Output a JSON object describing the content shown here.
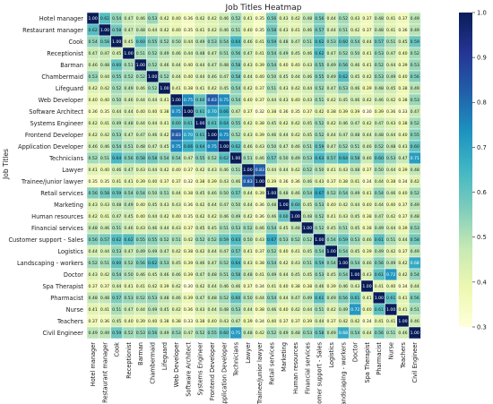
{
  "chart_data": {
    "type": "heatmap",
    "title": "Job Titles Heatmap",
    "ylabel": "Job Titles",
    "xlabel": "",
    "categories": [
      "Hotel manager",
      "Restaurant manager",
      "Cook",
      "Receptionist",
      "Barman",
      "Chambermaid",
      "Lifeguard",
      "Web Developer",
      "Software Architect",
      "Systems Engineer",
      "Frontend Developer",
      "Application Developer",
      "Technicians",
      "Lawyer",
      "Trainee/junior lawyer",
      "Retail services",
      "Marketing",
      "Human resources",
      "Financial services",
      "Customer support - Sales",
      "Logistics",
      "Landscaping - workers",
      "Doctor",
      "Spa Therapist",
      "Pharmacist",
      "Nurse",
      "Teachers",
      "Civil Engineer"
    ],
    "colormap": "YlGnBu",
    "value_format": "2 decimals",
    "colorbar": {
      "min": 0.3,
      "max": 1.0,
      "ticks": [
        0.3,
        0.4,
        0.5,
        0.6,
        0.7,
        0.8,
        0.9,
        1.0
      ],
      "tick_labels": [
        "0.3",
        "0.4",
        "0.5",
        "0.6",
        "0.7",
        "0.8",
        "0.9",
        "1.0"
      ],
      "placement": "right"
    },
    "values": [
      [
        1.0,
        0.62,
        0.54,
        0.47,
        0.46,
        0.53,
        0.42,
        0.4,
        0.36,
        0.42,
        0.42,
        0.46,
        0.52,
        0.41,
        0.35,
        0.56,
        0.43,
        0.42,
        0.48,
        0.56,
        0.44,
        0.52,
        0.43,
        0.37,
        0.48,
        0.41,
        0.37,
        0.49
      ],
      [
        0.62,
        1.0,
        0.58,
        0.47,
        0.48,
        0.44,
        0.42,
        0.4,
        0.35,
        0.41,
        0.42,
        0.46,
        0.51,
        0.4,
        0.35,
        0.58,
        0.43,
        0.41,
        0.46,
        0.57,
        0.44,
        0.51,
        0.42,
        0.37,
        0.48,
        0.41,
        0.36,
        0.49
      ],
      [
        0.54,
        0.58,
        1.0,
        0.45,
        0.6,
        0.55,
        0.52,
        0.5,
        0.44,
        0.49,
        0.53,
        0.54,
        0.64,
        0.46,
        0.41,
        0.59,
        0.48,
        0.47,
        0.51,
        0.62,
        0.53,
        0.6,
        0.54,
        0.44,
        0.57,
        0.51,
        0.45,
        0.59
      ],
      [
        0.47,
        0.47,
        0.45,
        1.0,
        0.51,
        0.52,
        0.49,
        0.46,
        0.44,
        0.48,
        0.47,
        0.51,
        0.56,
        0.47,
        0.41,
        0.54,
        0.49,
        0.45,
        0.46,
        0.62,
        0.47,
        0.52,
        0.5,
        0.41,
        0.53,
        0.47,
        0.4,
        0.52
      ],
      [
        0.46,
        0.48,
        0.6,
        0.51,
        1.0,
        0.52,
        0.46,
        0.44,
        0.4,
        0.44,
        0.47,
        0.48,
        0.58,
        0.43,
        0.39,
        0.54,
        0.4,
        0.4,
        0.43,
        0.55,
        0.49,
        0.56,
        0.46,
        0.41,
        0.52,
        0.44,
        0.39,
        0.53
      ],
      [
        0.53,
        0.44,
        0.55,
        0.52,
        0.52,
        1.0,
        0.52,
        0.44,
        0.4,
        0.44,
        0.46,
        0.47,
        0.58,
        0.44,
        0.4,
        0.5,
        0.45,
        0.44,
        0.46,
        0.55,
        0.49,
        0.62,
        0.45,
        0.42,
        0.53,
        0.49,
        0.4,
        0.56
      ],
      [
        0.42,
        0.42,
        0.52,
        0.49,
        0.46,
        0.52,
        1.0,
        0.41,
        0.38,
        0.41,
        0.42,
        0.45,
        0.54,
        0.42,
        0.37,
        0.51,
        0.43,
        0.42,
        0.44,
        0.52,
        0.47,
        0.53,
        0.46,
        0.39,
        0.48,
        0.45,
        0.38,
        0.49
      ],
      [
        0.4,
        0.4,
        0.5,
        0.46,
        0.44,
        0.44,
        0.41,
        1.0,
        0.75,
        0.6,
        0.83,
        0.75,
        0.54,
        0.4,
        0.37,
        0.44,
        0.43,
        0.4,
        0.43,
        0.51,
        0.42,
        0.45,
        0.46,
        0.42,
        0.46,
        0.42,
        0.38,
        0.53
      ],
      [
        0.36,
        0.35,
        0.44,
        0.44,
        0.4,
        0.4,
        0.38,
        0.75,
        1.0,
        0.61,
        0.7,
        0.66,
        0.47,
        0.37,
        0.32,
        0.38,
        0.36,
        0.35,
        0.37,
        0.42,
        0.38,
        0.39,
        0.39,
        0.3,
        0.39,
        0.36,
        0.33,
        0.47
      ],
      [
        0.42,
        0.41,
        0.49,
        0.48,
        0.44,
        0.44,
        0.41,
        0.6,
        0.61,
        1.0,
        0.61,
        0.64,
        0.55,
        0.42,
        0.38,
        0.45,
        0.42,
        0.42,
        0.45,
        0.52,
        0.42,
        0.46,
        0.47,
        0.42,
        0.47,
        0.43,
        0.38,
        0.52
      ],
      [
        0.42,
        0.42,
        0.53,
        0.47,
        0.47,
        0.46,
        0.42,
        0.83,
        0.7,
        0.61,
        1.0,
        0.75,
        0.52,
        0.43,
        0.39,
        0.46,
        0.44,
        0.42,
        0.45,
        0.52,
        0.44,
        0.47,
        0.48,
        0.44,
        0.48,
        0.44,
        0.4,
        0.55
      ],
      [
        0.46,
        0.46,
        0.54,
        0.51,
        0.48,
        0.47,
        0.45,
        0.75,
        0.66,
        0.64,
        0.75,
        1.0,
        0.62,
        0.46,
        0.43,
        0.5,
        0.47,
        0.46,
        0.51,
        0.59,
        0.47,
        0.52,
        0.51,
        0.46,
        0.52,
        0.48,
        0.43,
        0.6
      ],
      [
        0.52,
        0.51,
        0.64,
        0.56,
        0.58,
        0.58,
        0.54,
        0.54,
        0.47,
        0.55,
        0.52,
        0.62,
        1.0,
        0.51,
        0.46,
        0.57,
        0.5,
        0.49,
        0.53,
        0.63,
        0.57,
        0.64,
        0.58,
        0.46,
        0.6,
        0.53,
        0.47,
        0.71
      ],
      [
        0.41,
        0.4,
        0.46,
        0.47,
        0.43,
        0.44,
        0.42,
        0.4,
        0.37,
        0.42,
        0.43,
        0.46,
        0.51,
        1.0,
        0.83,
        0.44,
        0.44,
        0.42,
        0.52,
        0.5,
        0.41,
        0.43,
        0.48,
        0.37,
        0.5,
        0.44,
        0.39,
        0.48
      ],
      [
        0.35,
        0.35,
        0.41,
        0.41,
        0.39,
        0.4,
        0.37,
        0.37,
        0.32,
        0.38,
        0.39,
        0.43,
        0.46,
        0.83,
        1.0,
        0.39,
        0.36,
        0.36,
        0.46,
        0.43,
        0.37,
        0.38,
        0.41,
        0.34,
        0.44,
        0.38,
        0.34,
        0.42
      ],
      [
        0.56,
        0.58,
        0.59,
        0.54,
        0.54,
        0.5,
        0.51,
        0.44,
        0.38,
        0.45,
        0.46,
        0.5,
        0.57,
        0.44,
        0.39,
        1.0,
        0.48,
        0.46,
        0.54,
        0.67,
        0.52,
        0.54,
        0.49,
        0.41,
        0.54,
        0.46,
        0.4,
        0.52
      ],
      [
        0.43,
        0.43,
        0.48,
        0.49,
        0.4,
        0.45,
        0.43,
        0.43,
        0.36,
        0.42,
        0.44,
        0.47,
        0.5,
        0.44,
        0.36,
        0.48,
        1.0,
        0.6,
        0.45,
        0.53,
        0.4,
        0.42,
        0.44,
        0.4,
        0.44,
        0.4,
        0.37,
        0.49
      ],
      [
        0.42,
        0.41,
        0.47,
        0.45,
        0.4,
        0.44,
        0.42,
        0.4,
        0.35,
        0.42,
        0.42,
        0.46,
        0.49,
        0.42,
        0.36,
        0.46,
        0.6,
        1.0,
        0.48,
        0.52,
        0.41,
        0.43,
        0.45,
        0.38,
        0.47,
        0.42,
        0.37,
        0.48
      ],
      [
        0.48,
        0.46,
        0.51,
        0.46,
        0.43,
        0.46,
        0.44,
        0.43,
        0.37,
        0.45,
        0.45,
        0.51,
        0.53,
        0.52,
        0.46,
        0.54,
        0.45,
        0.48,
        1.0,
        0.52,
        0.45,
        0.51,
        0.45,
        0.38,
        0.49,
        0.44,
        0.39,
        0.53
      ],
      [
        0.56,
        0.57,
        0.62,
        0.62,
        0.55,
        0.55,
        0.52,
        0.51,
        0.42,
        0.52,
        0.52,
        0.59,
        0.63,
        0.5,
        0.43,
        0.67,
        0.53,
        0.52,
        0.52,
        1.0,
        0.54,
        0.59,
        0.53,
        0.46,
        0.61,
        0.51,
        0.44,
        0.58
      ],
      [
        0.44,
        0.44,
        0.53,
        0.47,
        0.49,
        0.49,
        0.47,
        0.42,
        0.38,
        0.42,
        0.44,
        0.47,
        0.57,
        0.41,
        0.37,
        0.52,
        0.4,
        0.41,
        0.45,
        0.54,
        1.0,
        0.54,
        0.45,
        0.39,
        0.49,
        0.42,
        0.37,
        0.49
      ],
      [
        0.52,
        0.51,
        0.6,
        0.52,
        0.56,
        0.62,
        0.53,
        0.45,
        0.39,
        0.46,
        0.47,
        0.52,
        0.64,
        0.43,
        0.38,
        0.54,
        0.42,
        0.43,
        0.51,
        0.59,
        0.54,
        1.0,
        0.54,
        0.46,
        0.56,
        0.49,
        0.42,
        0.68
      ],
      [
        0.43,
        0.42,
        0.54,
        0.5,
        0.46,
        0.45,
        0.46,
        0.46,
        0.39,
        0.47,
        0.48,
        0.51,
        0.58,
        0.48,
        0.41,
        0.49,
        0.44,
        0.45,
        0.45,
        0.53,
        0.45,
        0.54,
        1.0,
        0.43,
        0.61,
        0.72,
        0.42,
        0.54
      ],
      [
        0.37,
        0.37,
        0.44,
        0.41,
        0.41,
        0.42,
        0.39,
        0.42,
        0.3,
        0.42,
        0.44,
        0.46,
        0.46,
        0.37,
        0.34,
        0.41,
        0.4,
        0.38,
        0.38,
        0.46,
        0.39,
        0.46,
        0.43,
        1.0,
        0.41,
        0.4,
        0.34,
        0.44
      ],
      [
        0.48,
        0.48,
        0.57,
        0.53,
        0.52,
        0.53,
        0.48,
        0.46,
        0.39,
        0.47,
        0.48,
        0.52,
        0.6,
        0.5,
        0.44,
        0.54,
        0.44,
        0.47,
        0.49,
        0.61,
        0.49,
        0.56,
        0.61,
        0.41,
        1.0,
        0.61,
        0.41,
        0.56
      ],
      [
        0.41,
        0.41,
        0.51,
        0.47,
        0.44,
        0.49,
        0.45,
        0.42,
        0.36,
        0.43,
        0.44,
        0.48,
        0.53,
        0.44,
        0.38,
        0.46,
        0.4,
        0.42,
        0.44,
        0.51,
        0.42,
        0.49,
        0.72,
        0.4,
        0.61,
        1.0,
        0.41,
        0.51
      ],
      [
        0.37,
        0.36,
        0.45,
        0.4,
        0.39,
        0.4,
        0.38,
        0.38,
        0.33,
        0.38,
        0.4,
        0.43,
        0.47,
        0.39,
        0.34,
        0.4,
        0.37,
        0.37,
        0.39,
        0.44,
        0.37,
        0.42,
        0.42,
        0.34,
        0.41,
        0.41,
        1.0,
        0.46
      ],
      [
        0.49,
        0.49,
        0.59,
        0.52,
        0.53,
        0.56,
        0.49,
        0.53,
        0.47,
        0.52,
        0.55,
        0.6,
        0.71,
        0.48,
        0.42,
        0.52,
        0.49,
        0.48,
        0.53,
        0.58,
        0.49,
        0.68,
        0.54,
        0.44,
        0.56,
        0.51,
        0.46,
        1.0
      ]
    ]
  }
}
